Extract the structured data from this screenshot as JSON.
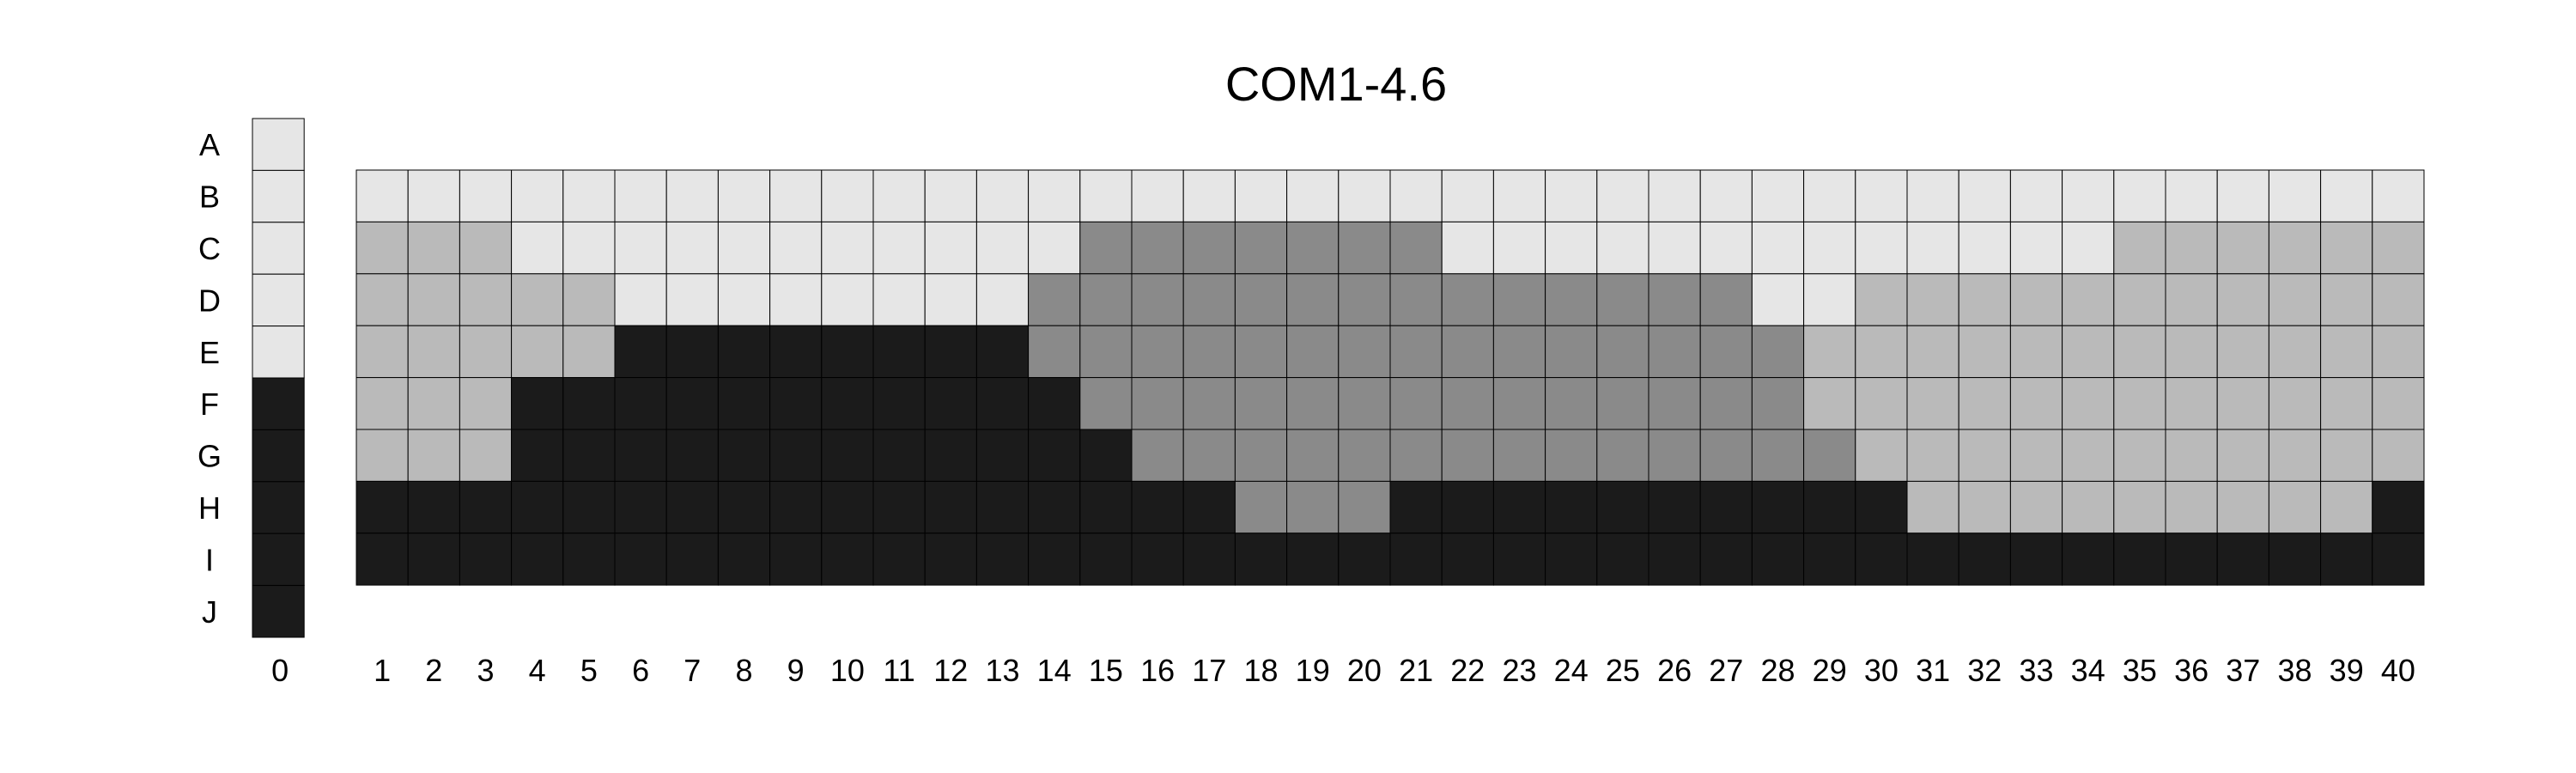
{
  "title": "COM1-4.6",
  "row_labels": [
    "A",
    "B",
    "C",
    "D",
    "E",
    "F",
    "G",
    "H",
    "I",
    "J"
  ],
  "reference_column": {
    "label": "0",
    "cells": [
      "L",
      "L",
      "L",
      "L",
      "L",
      "K",
      "K",
      "K",
      "K",
      "K"
    ]
  },
  "column_labels": [
    "1",
    "2",
    "3",
    "4",
    "5",
    "6",
    "7",
    "8",
    "9",
    "10",
    "11",
    "12",
    "13",
    "14",
    "15",
    "16",
    "17",
    "18",
    "19",
    "20",
    "21",
    "22",
    "23",
    "24",
    "25",
    "26",
    "27",
    "28",
    "29",
    "30",
    "31",
    "32",
    "33",
    "34",
    "35",
    "36",
    "37",
    "38",
    "39",
    "40"
  ],
  "grid_rows": [
    "B",
    "C",
    "D",
    "E",
    "F",
    "G",
    "H",
    "I"
  ],
  "legend_colors": {
    "L": "#e6e6e6",
    "S": "#bababa",
    "D": "#8a8a8a",
    "K": "#1b1b1b"
  },
  "grid": [
    [
      "L",
      "L",
      "L",
      "L",
      "L",
      "L",
      "L",
      "L",
      "L",
      "L",
      "L",
      "L",
      "L",
      "L",
      "L",
      "L",
      "L",
      "L",
      "L",
      "L",
      "L",
      "L",
      "L",
      "L",
      "L",
      "L",
      "L",
      "L",
      "L",
      "L",
      "L",
      "L",
      "L",
      "L",
      "L",
      "L",
      "L",
      "L",
      "L",
      "L"
    ],
    [
      "S",
      "S",
      "S",
      "L",
      "L",
      "L",
      "L",
      "L",
      "L",
      "L",
      "L",
      "L",
      "L",
      "L",
      "D",
      "D",
      "D",
      "D",
      "D",
      "D",
      "D",
      "L",
      "L",
      "L",
      "L",
      "L",
      "L",
      "L",
      "L",
      "L",
      "L",
      "L",
      "L",
      "L",
      "S",
      "S",
      "S",
      "S",
      "S",
      "S"
    ],
    [
      "S",
      "S",
      "S",
      "S",
      "S",
      "L",
      "L",
      "L",
      "L",
      "L",
      "L",
      "L",
      "L",
      "D",
      "D",
      "D",
      "D",
      "D",
      "D",
      "D",
      "D",
      "D",
      "D",
      "D",
      "D",
      "D",
      "D",
      "L",
      "L",
      "S",
      "S",
      "S",
      "S",
      "S",
      "S",
      "S",
      "S",
      "S",
      "S",
      "S"
    ],
    [
      "S",
      "S",
      "S",
      "S",
      "S",
      "K",
      "K",
      "K",
      "K",
      "K",
      "K",
      "K",
      "K",
      "D",
      "D",
      "D",
      "D",
      "D",
      "D",
      "D",
      "D",
      "D",
      "D",
      "D",
      "D",
      "D",
      "D",
      "D",
      "S",
      "S",
      "S",
      "S",
      "S",
      "S",
      "S",
      "S",
      "S",
      "S",
      "S",
      "S"
    ],
    [
      "S",
      "S",
      "S",
      "K",
      "K",
      "K",
      "K",
      "K",
      "K",
      "K",
      "K",
      "K",
      "K",
      "K",
      "D",
      "D",
      "D",
      "D",
      "D",
      "D",
      "D",
      "D",
      "D",
      "D",
      "D",
      "D",
      "D",
      "D",
      "S",
      "S",
      "S",
      "S",
      "S",
      "S",
      "S",
      "S",
      "S",
      "S",
      "S",
      "S"
    ],
    [
      "S",
      "S",
      "S",
      "K",
      "K",
      "K",
      "K",
      "K",
      "K",
      "K",
      "K",
      "K",
      "K",
      "K",
      "K",
      "D",
      "D",
      "D",
      "D",
      "D",
      "D",
      "D",
      "D",
      "D",
      "D",
      "D",
      "D",
      "D",
      "D",
      "S",
      "S",
      "S",
      "S",
      "S",
      "S",
      "S",
      "S",
      "S",
      "S",
      "S"
    ],
    [
      "K",
      "K",
      "K",
      "K",
      "K",
      "K",
      "K",
      "K",
      "K",
      "K",
      "K",
      "K",
      "K",
      "K",
      "K",
      "K",
      "K",
      "D",
      "D",
      "D",
      "K",
      "K",
      "K",
      "K",
      "K",
      "K",
      "K",
      "K",
      "K",
      "K",
      "S",
      "S",
      "S",
      "S",
      "S",
      "S",
      "S",
      "S",
      "S",
      "K"
    ],
    [
      "K",
      "K",
      "K",
      "K",
      "K",
      "K",
      "K",
      "K",
      "K",
      "K",
      "K",
      "K",
      "K",
      "K",
      "K",
      "K",
      "K",
      "K",
      "K",
      "K",
      "K",
      "K",
      "K",
      "K",
      "K",
      "K",
      "K",
      "K",
      "K",
      "K",
      "K",
      "K",
      "K",
      "K",
      "K",
      "K",
      "K",
      "K",
      "K",
      "K"
    ]
  ]
}
